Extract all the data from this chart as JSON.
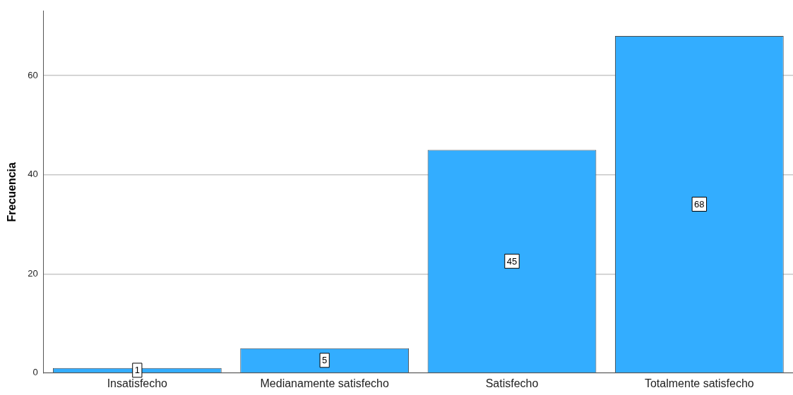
{
  "chart_data": {
    "type": "bar",
    "ylabel": "Frecuencia",
    "categories": [
      "Insatisfecho",
      "Medianamente satisfecho",
      "Satisfecho",
      "Totalmente satisfecho"
    ],
    "values": [
      1,
      5,
      45,
      68
    ],
    "color": "#33adff",
    "ylim": [
      0,
      73
    ],
    "yticks": [
      0,
      20,
      40,
      60
    ],
    "grid": "y",
    "legend": false,
    "data_labels": true
  }
}
